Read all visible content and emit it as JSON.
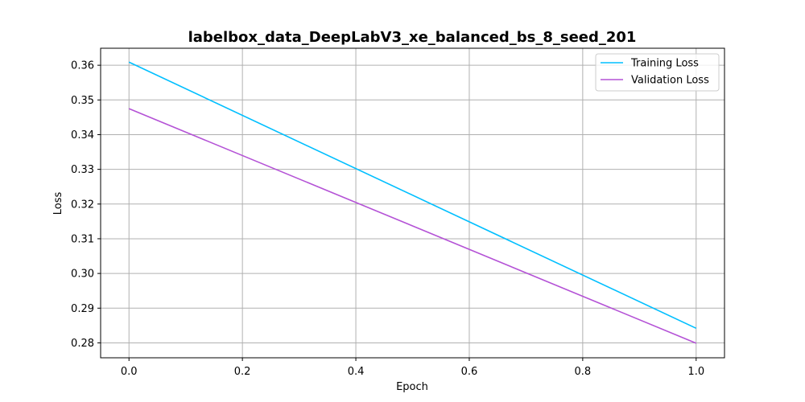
{
  "chart_data": {
    "type": "line",
    "title": "labelbox_data_DeepLabV3_xe_balanced_bs_8_seed_201",
    "xlabel": "Epoch",
    "ylabel": "Loss",
    "x": [
      0.0,
      1.0
    ],
    "xlim": [
      -0.05,
      1.05
    ],
    "ylim": [
      0.2757,
      0.3649
    ],
    "xticks": [
      0.0,
      0.2,
      0.4,
      0.6,
      0.8,
      1.0
    ],
    "xtick_labels": [
      "0.0",
      "0.2",
      "0.4",
      "0.6",
      "0.8",
      "1.0"
    ],
    "yticks": [
      0.28,
      0.29,
      0.3,
      0.31,
      0.32,
      0.33,
      0.34,
      0.35,
      0.36
    ],
    "ytick_labels": [
      "0.28",
      "0.29",
      "0.30",
      "0.31",
      "0.32",
      "0.33",
      "0.34",
      "0.35",
      "0.36"
    ],
    "grid": true,
    "legend_position": "top-right",
    "series": [
      {
        "name": "Training Loss",
        "color": "#00bfff",
        "values": [
          0.3609,
          0.2842
        ]
      },
      {
        "name": "Validation Loss",
        "color": "#b452d6",
        "values": [
          0.3475,
          0.2799
        ]
      }
    ]
  }
}
